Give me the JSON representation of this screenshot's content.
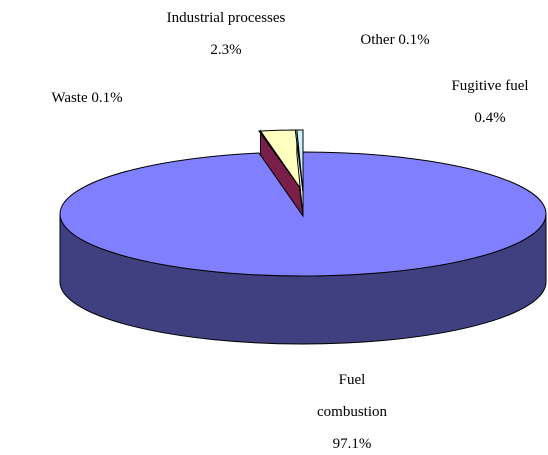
{
  "chart_data": {
    "type": "pie3d",
    "categories": [
      "Fuel combustion",
      "Waste",
      "Industrial processes",
      "Other",
      "Fugitive fuel"
    ],
    "values": [
      97.1,
      0.1,
      2.3,
      0.1,
      0.4
    ],
    "value_labels": [
      "97.1%",
      "0.1%",
      "2.3%",
      "0.1%",
      "0.4%"
    ],
    "colors": [
      "#8080ff",
      "#7a1f4a",
      "#ffffc0",
      "#ffffff",
      "#c8f4ff"
    ]
  }
}
